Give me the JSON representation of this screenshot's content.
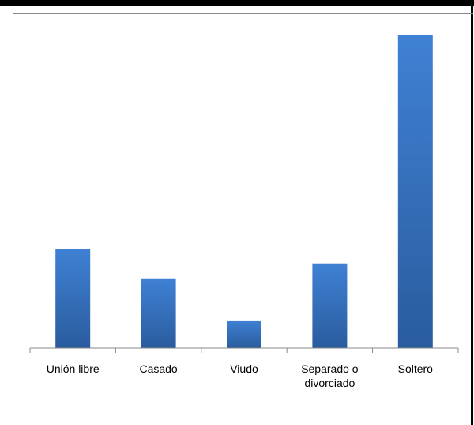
{
  "chart_data": {
    "type": "bar",
    "categories": [
      "Unión libre",
      "Casado",
      "Viudo",
      "Separado o divorciado",
      "Soltero"
    ],
    "category_lines": [
      [
        "Unión libre"
      ],
      [
        "Casado"
      ],
      [
        "Viudo"
      ],
      [
        "Separado o",
        "divorciado"
      ],
      [
        "Soltero"
      ]
    ],
    "values": [
      125,
      88,
      35,
      107,
      395
    ],
    "ylim": [
      0,
      400
    ],
    "grid": false,
    "legend": "none",
    "colors": {
      "bar_top": "#3F81D4",
      "bar_bottom": "#2A5C9E",
      "axis": "#888888"
    }
  }
}
